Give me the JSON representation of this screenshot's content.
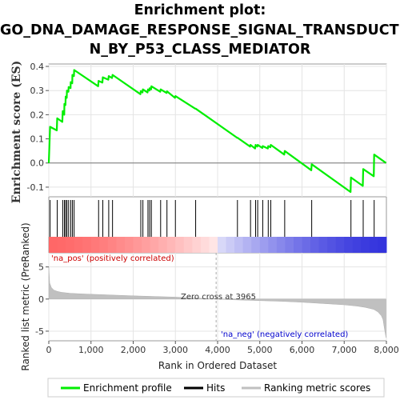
{
  "title": {
    "line1": "Enrichment plot:",
    "line2": "GO_DNA_DAMAGE_RESPONSE_SIGNAL_TRANSDUCTIO",
    "line3": "N_BY_P53_CLASS_MEDIATOR"
  },
  "legend": {
    "enrichment": "Enrichment profile",
    "hits": "Hits",
    "ranking": "Ranking metric scores"
  },
  "annotations": {
    "pos": "'na_pos' (positively correlated)",
    "neg": "'na_neg' (negatively correlated)",
    "zero": "Zero cross at 3965"
  },
  "colors": {
    "enrichment_line": "#00ee00",
    "hits": "#000000",
    "ranking_fill": "#c0c0c0",
    "pos_band": "#ff6666",
    "neg_band": "#3333dd"
  },
  "chart_data": [
    {
      "type": "line",
      "name": "enrichment-profile",
      "ylabel": "Enrichment score (ES)",
      "xlim": [
        0,
        8000
      ],
      "ylim": [
        -0.14,
        0.41
      ],
      "yticks": [
        -0.1,
        0.0,
        0.1,
        0.2,
        0.3,
        0.4
      ],
      "ytick_labels": [
        "-0.1",
        "0.0",
        "0.1",
        "0.2",
        "0.3",
        "0.4"
      ],
      "hit_positions": [
        30,
        200,
        330,
        370,
        400,
        430,
        470,
        520,
        560,
        600,
        1180,
        1280,
        1420,
        1510,
        2180,
        2230,
        2350,
        2390,
        2430,
        2650,
        2800,
        3000,
        3480,
        4470,
        4780,
        4900,
        4950,
        5070,
        5200,
        5260,
        5590,
        6230,
        7160,
        7450,
        7710
      ],
      "x": [
        0,
        30,
        190,
        200,
        320,
        330,
        365,
        370,
        395,
        400,
        425,
        430,
        465,
        470,
        515,
        520,
        555,
        560,
        595,
        600,
        1170,
        1180,
        1270,
        1280,
        1410,
        1420,
        1500,
        1510,
        2170,
        2180,
        2220,
        2230,
        2340,
        2350,
        2385,
        2390,
        2425,
        2430,
        2640,
        2650,
        2790,
        2800,
        2990,
        3000,
        3470,
        3480,
        4460,
        4470,
        4770,
        4780,
        4890,
        4900,
        4940,
        4950,
        5060,
        5070,
        5190,
        5200,
        5250,
        5260,
        5580,
        5590,
        6220,
        6230,
        7150,
        7160,
        7440,
        7450,
        7700,
        7710,
        7990
      ],
      "y": [
        0.0,
        0.15,
        0.135,
        0.185,
        0.17,
        0.215,
        0.2,
        0.245,
        0.24,
        0.275,
        0.27,
        0.3,
        0.295,
        0.315,
        0.31,
        0.335,
        0.33,
        0.365,
        0.36,
        0.385,
        0.318,
        0.34,
        0.333,
        0.355,
        0.345,
        0.36,
        0.352,
        0.365,
        0.285,
        0.298,
        0.292,
        0.305,
        0.292,
        0.305,
        0.3,
        0.31,
        0.305,
        0.318,
        0.295,
        0.305,
        0.29,
        0.297,
        0.27,
        0.277,
        0.225,
        0.225,
        0.105,
        0.105,
        0.068,
        0.075,
        0.06,
        0.075,
        0.068,
        0.075,
        0.062,
        0.07,
        0.06,
        0.07,
        0.065,
        0.075,
        0.035,
        0.05,
        -0.03,
        -0.005,
        -0.12,
        -0.06,
        -0.095,
        -0.025,
        -0.055,
        0.035,
        0.0
      ]
    },
    {
      "type": "area",
      "name": "ranked-list-metric",
      "xlabel": "Rank in Ordered Dataset",
      "ylabel": "Ranked list metric (PreRanked)",
      "xlim": [
        0,
        8000
      ],
      "ylim": [
        -6.5,
        7.2
      ],
      "yticks": [
        -5,
        0,
        5
      ],
      "ytick_labels": [
        "-5",
        "0",
        "5"
      ],
      "xticks": [
        0,
        1000,
        2000,
        3000,
        4000,
        5000,
        6000,
        7000,
        8000
      ],
      "xtick_labels": [
        "0",
        "1,000",
        "2,000",
        "3,000",
        "4,000",
        "5,000",
        "6,000",
        "7,000",
        "8,000"
      ],
      "zero_cross": 3965,
      "x": [
        0,
        20,
        60,
        120,
        200,
        300,
        500,
        800,
        1200,
        1600,
        2000,
        2500,
        3000,
        3500,
        3965,
        4500,
        5000,
        5500,
        6000,
        6500,
        7000,
        7300,
        7500,
        7700,
        7800,
        7880,
        7920,
        7950,
        7990
      ],
      "y": [
        5.0,
        2.5,
        1.8,
        1.4,
        1.2,
        1.05,
        0.9,
        0.8,
        0.7,
        0.6,
        0.5,
        0.4,
        0.3,
        0.15,
        0.0,
        -0.15,
        -0.25,
        -0.35,
        -0.5,
        -0.7,
        -0.9,
        -1.1,
        -1.3,
        -1.6,
        -2.0,
        -2.6,
        -3.2,
        -4.5,
        -6.0
      ]
    }
  ]
}
